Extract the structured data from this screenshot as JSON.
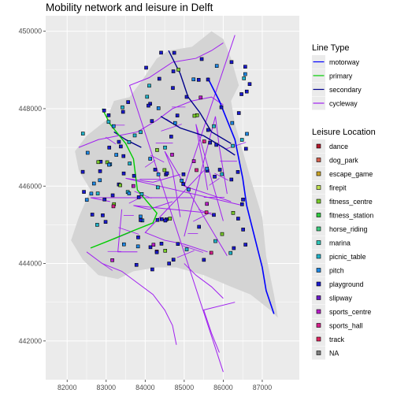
{
  "title": "Mobility network and leisure in Delft",
  "chart_data": {
    "type": "map",
    "panel_background": "#EBEBEB",
    "municipality_fill": "#D4D4D4",
    "grid": true,
    "xlim": [
      81450,
      87950
    ],
    "ylim": [
      441000,
      450400
    ],
    "x_ticks": [
      82000,
      83000,
      84000,
      85000,
      86000,
      87000
    ],
    "x_tick_labels": [
      "82000",
      "83000",
      "84000",
      "85000",
      "86000",
      "87000"
    ],
    "y_ticks": [
      442000,
      444000,
      446000,
      448000,
      450000
    ],
    "y_tick_labels": [
      "442000",
      "444000",
      "446000",
      "448000",
      "450000"
    ],
    "line_legend": {
      "title": "Line Type",
      "entries": [
        {
          "label": "motorway",
          "color": "#0000FF"
        },
        {
          "label": "primary",
          "color": "#00CD00"
        },
        {
          "label": "secondary",
          "color": "#00008B"
        },
        {
          "label": "cycleway",
          "color": "#A020F0"
        }
      ]
    },
    "point_legend": {
      "title": "Leisure Location",
      "entries": [
        {
          "label": "dance",
          "color": "#B2182B"
        },
        {
          "label": "dog_park",
          "color": "#D6604D"
        },
        {
          "label": "escape_game",
          "color": "#C9A227"
        },
        {
          "label": "firepit",
          "color": "#BFE050"
        },
        {
          "label": "fitness_centre",
          "color": "#7ACC2C"
        },
        {
          "label": "fitness_station",
          "color": "#2ECC40"
        },
        {
          "label": "horse_riding",
          "color": "#3CCB7F"
        },
        {
          "label": "marina",
          "color": "#2EC4B6"
        },
        {
          "label": "picnic_table",
          "color": "#20B2C8"
        },
        {
          "label": "pitch",
          "color": "#1E88E5"
        },
        {
          "label": "playground",
          "color": "#1A1ACD"
        },
        {
          "label": "slipway",
          "color": "#6A1BC8"
        },
        {
          "label": "sports_centre",
          "color": "#B81EC8"
        },
        {
          "label": "sports_hall",
          "color": "#D61E8A"
        },
        {
          "label": "track",
          "color": "#E0245E"
        },
        {
          "label": "NA",
          "color": "#7F7F7F"
        }
      ]
    },
    "municipality_outline": [
      [
        82200,
        446900
      ],
      [
        82500,
        447300
      ],
      [
        83000,
        447700
      ],
      [
        83200,
        448200
      ],
      [
        83600,
        448300
      ],
      [
        83900,
        448700
      ],
      [
        84300,
        449300
      ],
      [
        84600,
        449500
      ],
      [
        85200,
        449600
      ],
      [
        85700,
        450000
      ],
      [
        86000,
        449800
      ],
      [
        86200,
        449300
      ],
      [
        86400,
        448600
      ],
      [
        86200,
        448200
      ],
      [
        86300,
        447600
      ],
      [
        86700,
        446200
      ],
      [
        87000,
        445200
      ],
      [
        87100,
        444200
      ],
      [
        87300,
        443200
      ],
      [
        87400,
        442600
      ],
      [
        87200,
        442800
      ],
      [
        86700,
        443200
      ],
      [
        86200,
        443400
      ],
      [
        85500,
        443700
      ],
      [
        84800,
        443900
      ],
      [
        84300,
        443900
      ],
      [
        83700,
        443800
      ],
      [
        83300,
        443600
      ],
      [
        82800,
        443700
      ],
      [
        82400,
        444100
      ],
      [
        82100,
        444600
      ],
      [
        82300,
        445200
      ],
      [
        82600,
        445900
      ],
      [
        82300,
        446400
      ]
    ],
    "motorway": [
      [
        85600,
        448800
      ],
      [
        85900,
        448200
      ],
      [
        86300,
        447200
      ],
      [
        86500,
        446200
      ],
      [
        86600,
        445500
      ],
      [
        86800,
        444700
      ],
      [
        87000,
        443900
      ],
      [
        87100,
        443300
      ],
      [
        87300,
        442700
      ]
    ],
    "primary": [
      [
        82600,
        444400
      ],
      [
        83100,
        444600
      ],
      [
        83700,
        444850
      ],
      [
        84200,
        445050
      ],
      [
        84300,
        445300
      ],
      [
        83800,
        445900
      ],
      [
        83700,
        446700
      ],
      [
        83500,
        447100
      ],
      [
        83100,
        447600
      ],
      [
        82900,
        448000
      ]
    ],
    "secondary": [
      [
        84400,
        447800
      ],
      [
        84900,
        447500
      ],
      [
        85500,
        447300
      ],
      [
        86000,
        447000
      ],
      [
        86300,
        446800
      ],
      [
        84600,
        449500
      ],
      [
        84900,
        448900
      ],
      [
        85100,
        448300
      ],
      [
        85400,
        447900
      ],
      [
        85700,
        447400
      ],
      [
        86200,
        447100
      ],
      [
        83200,
        447400
      ],
      [
        83500,
        447200
      ],
      [
        83900,
        447000
      ]
    ],
    "cycleway": [
      [
        82300,
        447000
      ],
      [
        82800,
        447200
      ],
      [
        83300,
        447300
      ],
      [
        83800,
        447400
      ],
      [
        84300,
        447700
      ],
      [
        84700,
        448000
      ],
      [
        85200,
        448200
      ],
      [
        85700,
        448300
      ],
      [
        86000,
        448100
      ],
      [
        82500,
        444300
      ],
      [
        82900,
        444000
      ],
      [
        83400,
        443800
      ],
      [
        83800,
        443500
      ],
      [
        84200,
        443200
      ],
      [
        84500,
        442800
      ],
      [
        84700,
        442400
      ],
      [
        84800,
        441900
      ],
      [
        85000,
        444000
      ],
      [
        85300,
        443700
      ],
      [
        85700,
        443400
      ],
      [
        86000,
        443100
      ],
      [
        86300,
        443000
      ],
      [
        85500,
        442800
      ],
      [
        85700,
        442200
      ],
      [
        85900,
        441700
      ],
      [
        86000,
        441200
      ],
      [
        83600,
        448600
      ],
      [
        84100,
        448800
      ],
      [
        84700,
        449200
      ],
      [
        85300,
        449300
      ],
      [
        85700,
        449500
      ],
      [
        86000,
        449700
      ],
      [
        86300,
        449900
      ],
      [
        85000,
        446000
      ],
      [
        85600,
        445800
      ],
      [
        86200,
        445600
      ],
      [
        86500,
        445500
      ],
      [
        83500,
        446200
      ],
      [
        84200,
        446100
      ],
      [
        84900,
        446300
      ],
      [
        85500,
        446400
      ],
      [
        84000,
        444800
      ],
      [
        84500,
        444600
      ],
      [
        85000,
        444500
      ],
      [
        85600,
        444300
      ],
      [
        86100,
        444200
      ],
      [
        84500,
        446900
      ],
      [
        84700,
        446400
      ],
      [
        84800,
        445800
      ],
      [
        84900,
        445200
      ],
      [
        85000,
        444700
      ],
      [
        85800,
        447800
      ],
      [
        85900,
        447000
      ],
      [
        86000,
        446400
      ],
      [
        86100,
        445800
      ],
      [
        86000,
        445100
      ],
      [
        85300,
        447600
      ],
      [
        85400,
        447000
      ],
      [
        85500,
        446500
      ],
      [
        85600,
        445900
      ],
      [
        85700,
        445300
      ],
      [
        83700,
        445500
      ],
      [
        84100,
        445400
      ],
      [
        84700,
        445600
      ],
      [
        85200,
        445700
      ],
      [
        82600,
        445700
      ],
      [
        83100,
        445600
      ],
      [
        83400,
        445400
      ],
      [
        83300,
        444300
      ],
      [
        83800,
        444300
      ],
      [
        84300,
        444200
      ]
    ]
  }
}
